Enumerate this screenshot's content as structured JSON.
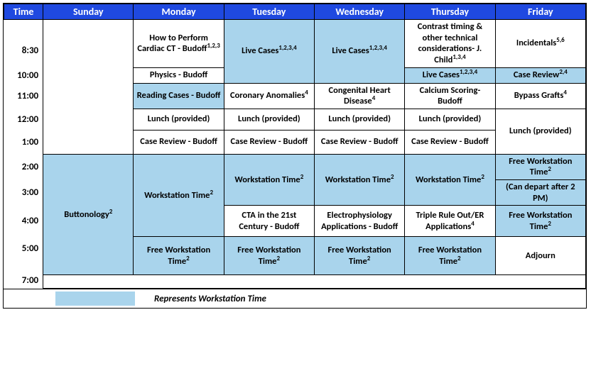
{
  "colors": {
    "header_bg": "#1f49e0",
    "header_text": "#ffffff",
    "shade_bg": "#a9d4ec",
    "border": "#000000",
    "background": "#ffffff"
  },
  "typography": {
    "font_family": "Calibri, Arial, sans-serif",
    "header_fontsize": 14,
    "cell_fontsize": 12.5,
    "time_fontsize": 13,
    "sup_fontsize": 9
  },
  "columns": {
    "time": "Time",
    "days": [
      "Sunday",
      "Monday",
      "Tuesday",
      "Wednesday",
      "Thursday",
      "Friday"
    ]
  },
  "time_labels": [
    "8:30",
    "10:00",
    "11:00",
    "12:00",
    "1:00",
    "2:00",
    "3:00",
    "4:00",
    "5:00",
    "7:00"
  ],
  "legend": {
    "text": "Represents Workstation Time",
    "swatch_color": "#a9d4ec"
  },
  "cells": {
    "sun_empty": {
      "text": "",
      "sup": "",
      "shaded": false
    },
    "sun_button": {
      "text": "Buttonology",
      "sup": "2",
      "shaded": true
    },
    "mon_830": {
      "text": "How to Perform Cardiac CT - Budoff",
      "sup": "1,2,3",
      "shaded": false
    },
    "mon_1000": {
      "text": "Physics - Budoff",
      "sup": "",
      "shaded": false
    },
    "mon_1100": {
      "text": "Reading Cases - Budoff",
      "sup": "",
      "shaded": true
    },
    "mon_1200": {
      "text": "Lunch (provided)",
      "sup": "",
      "shaded": false
    },
    "mon_100": {
      "text": "Case Review - Budoff",
      "sup": "",
      "shaded": false
    },
    "mon_ws": {
      "text": "Workstation Time",
      "sup": "2",
      "shaded": true
    },
    "mon_free": {
      "text": "Free Workstation Time",
      "sup": "2",
      "shaded": true
    },
    "tue_live": {
      "text": "Live Cases",
      "sup": "1,2,3,4",
      "shaded": true
    },
    "tue_1100": {
      "text": "Coronary Anomalies",
      "sup": "4",
      "shaded": false
    },
    "tue_1200": {
      "text": "Lunch (provided)",
      "sup": "",
      "shaded": false
    },
    "tue_100": {
      "text": "Case Review - Budoff",
      "sup": "",
      "shaded": false
    },
    "tue_ws": {
      "text": "Workstation Time",
      "sup": "2",
      "shaded": true
    },
    "tue_400": {
      "text": "CTA in the 21st Century - Budoff",
      "sup": "",
      "shaded": false
    },
    "tue_free": {
      "text": "Free Workstation Time",
      "sup": "2",
      "shaded": true
    },
    "wed_live": {
      "text": "Live Cases",
      "sup": "1,2,3,4",
      "shaded": true
    },
    "wed_1100": {
      "text": "Congenital Heart Disease",
      "sup": "4",
      "shaded": false
    },
    "wed_1200": {
      "text": "Lunch (provided)",
      "sup": "",
      "shaded": false
    },
    "wed_100": {
      "text": "Case Review - Budoff",
      "sup": "",
      "shaded": false
    },
    "wed_ws": {
      "text": "Workstation Time",
      "sup": "2",
      "shaded": true
    },
    "wed_400": {
      "text": "Electrophysiology Applications - Budoff",
      "sup": "",
      "shaded": false
    },
    "wed_free": {
      "text": "Free Workstation Time",
      "sup": "2",
      "shaded": true
    },
    "thu_830": {
      "text": "Contrast timing & other technical considerations- J. Child",
      "sup": "1,3,4",
      "shaded": false
    },
    "thu_1000": {
      "text": "Live Cases",
      "sup": "1,2,3,4",
      "shaded": true
    },
    "thu_1100": {
      "text": "Calcium Scoring- Budoff",
      "sup": "",
      "shaded": false
    },
    "thu_1200": {
      "text": "Lunch (provided)",
      "sup": "",
      "shaded": false
    },
    "thu_100": {
      "text": "Case Review - Budoff",
      "sup": "",
      "shaded": false
    },
    "thu_ws": {
      "text": "Workstation Time",
      "sup": "2",
      "shaded": true
    },
    "thu_400": {
      "text": "Triple Rule Out/ER Applications",
      "sup": "4",
      "shaded": false
    },
    "thu_free": {
      "text": "Free Workstation Time",
      "sup": "2",
      "shaded": true
    },
    "fri_830": {
      "text": "Incidentals",
      "sup": "5,6",
      "shaded": false
    },
    "fri_1000": {
      "text": "Case Review",
      "sup": "2,4",
      "shaded": true
    },
    "fri_1100": {
      "text": "Bypass Grafts",
      "sup": "4",
      "shaded": false
    },
    "fri_lunch": {
      "text": "Lunch (provided)",
      "sup": "",
      "shaded": false
    },
    "fri_free1": {
      "text": "Free Workstation Time",
      "sup": "2",
      "shaded": true
    },
    "fri_depart": {
      "text": "(Can depart after 2 PM)",
      "sup": "",
      "shaded": true
    },
    "fri_free2": {
      "text": "Free Workstation Time",
      "sup": "2",
      "shaded": true
    },
    "fri_adjourn": {
      "text": "Adjourn",
      "sup": "",
      "shaded": false
    },
    "bottom_empty": {
      "text": "",
      "sup": "",
      "shaded": false
    }
  }
}
